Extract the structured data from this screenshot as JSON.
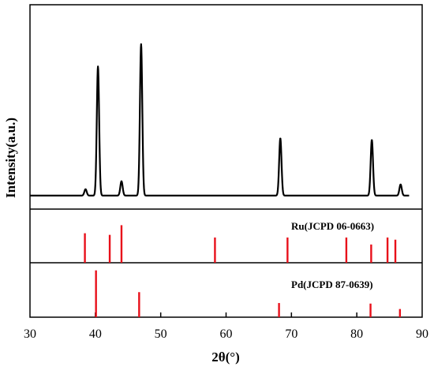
{
  "chart_data": {
    "type": "line",
    "xlabel": "2θ(°)",
    "ylabel": "Intensity(a.u.)",
    "xlim": [
      30,
      90
    ],
    "x_ticks": [
      30,
      40,
      50,
      60,
      70,
      80,
      90
    ],
    "colors": {
      "pattern": "#000000",
      "reference": "#e8101a"
    },
    "measured": {
      "baseline": 0.05,
      "peaks": [
        {
          "x": 38.5,
          "y": 0.09
        },
        {
          "x": 40.4,
          "y": 0.86
        },
        {
          "x": 44.0,
          "y": 0.14
        },
        {
          "x": 47.0,
          "y": 1.0
        },
        {
          "x": 68.3,
          "y": 0.41
        },
        {
          "x": 82.3,
          "y": 0.4
        },
        {
          "x": 86.7,
          "y": 0.12
        }
      ]
    },
    "references": [
      {
        "name": "Ru(JCPD 06-0663)",
        "lines": [
          {
            "x": 38.4,
            "h": 0.55
          },
          {
            "x": 42.2,
            "h": 0.52
          },
          {
            "x": 44.0,
            "h": 0.7
          },
          {
            "x": 58.3,
            "h": 0.47
          },
          {
            "x": 69.4,
            "h": 0.47
          },
          {
            "x": 78.4,
            "h": 0.47
          },
          {
            "x": 82.2,
            "h": 0.34
          },
          {
            "x": 84.7,
            "h": 0.47
          },
          {
            "x": 85.9,
            "h": 0.43
          }
        ]
      },
      {
        "name": "Pd(JCPD 87-0639)",
        "lines": [
          {
            "x": 40.1,
            "h": 0.86
          },
          {
            "x": 46.7,
            "h": 0.46
          },
          {
            "x": 68.1,
            "h": 0.26
          },
          {
            "x": 82.1,
            "h": 0.25
          },
          {
            "x": 86.6,
            "h": 0.15
          }
        ]
      }
    ]
  }
}
